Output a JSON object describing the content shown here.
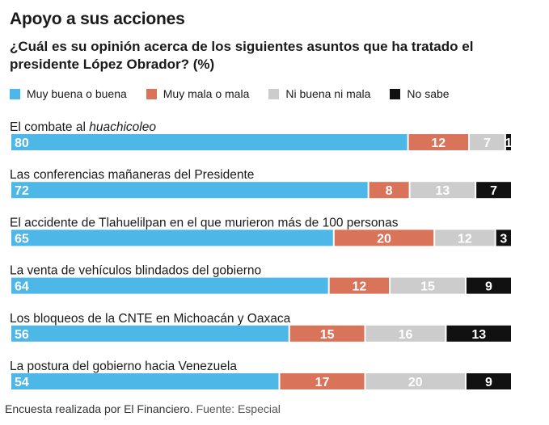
{
  "title": "Apoyo a sus acciones",
  "subtitle": "¿Cuál es su opinión acerca de los siguientes asuntos que ha tratado el presidente López Obrador? (%)",
  "footer": {
    "note": "Encuesta realizada por El Financiero.",
    "source": "Fuente: Especial"
  },
  "chart_data": {
    "type": "bar",
    "orientation": "horizontal",
    "stacked": true,
    "legend_position": "top",
    "grid": false,
    "categories": [
      "El combate al huachicoleo",
      "Las conferencias mañaneras del Presidente",
      "El accidente de Tlahuelilpan en el que murieron más de 100 personas",
      "La venta de vehículos blindados del gobierno",
      "Los bloqueos de la CNTE en Michoacán y Oaxaca",
      "La postura del gobierno hacia Venezuela"
    ],
    "category_display": [
      {
        "text": "El combate al ",
        "emph": "huachicoleo"
      },
      {
        "text": "Las conferencias mañaneras del Presidente",
        "emph": ""
      },
      {
        "text": "El accidente de Tlahuelilpan en el que murieron más de 100 personas",
        "emph": ""
      },
      {
        "text": "La venta de vehículos blindados del gobierno",
        "emph": ""
      },
      {
        "text": "Los bloqueos de la CNTE en Michoacán y Oaxaca",
        "emph": ""
      },
      {
        "text": "La postura del gobierno hacia Venezuela",
        "emph": ""
      }
    ],
    "series": [
      {
        "name": "Muy buena o buena",
        "color": "#4db8e8",
        "label_color": "#ffffff",
        "values": [
          80,
          72,
          65,
          64,
          56,
          54
        ]
      },
      {
        "name": "Muy mala o mala",
        "color": "#d9745a",
        "label_color": "#ffffff",
        "values": [
          12,
          8,
          20,
          12,
          15,
          17
        ]
      },
      {
        "name": "Ni buena ni mala",
        "color": "#cccccc",
        "label_color": "#ffffff",
        "values": [
          7,
          13,
          12,
          15,
          16,
          20
        ]
      },
      {
        "name": "No sabe",
        "color": "#111111",
        "label_color": "#ffffff",
        "values": [
          1,
          7,
          3,
          9,
          13,
          9
        ]
      }
    ]
  }
}
